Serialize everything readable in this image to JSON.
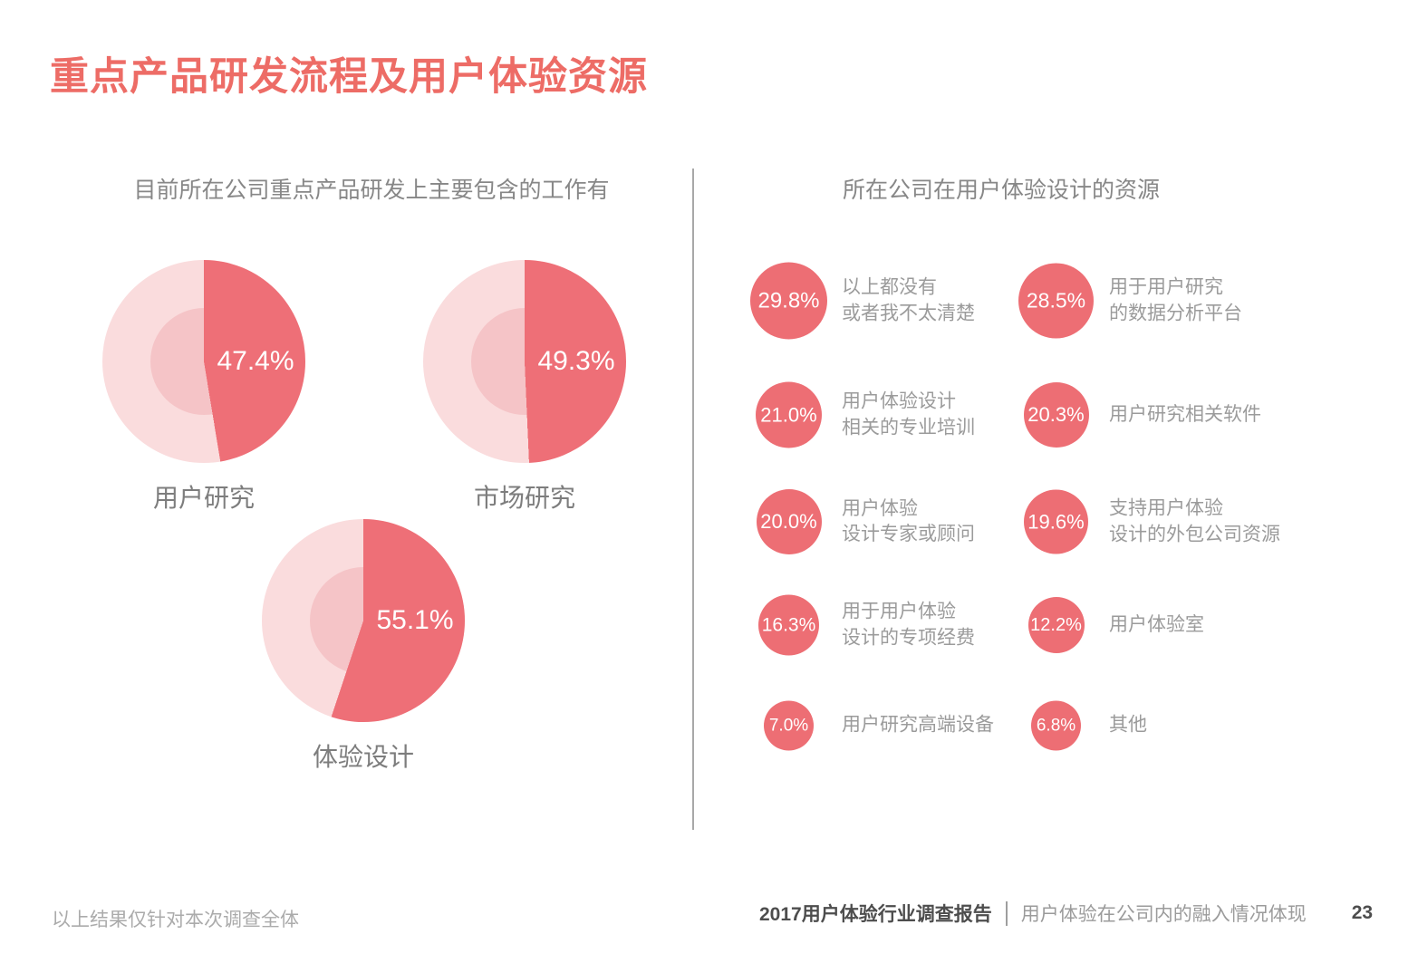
{
  "page": {
    "title": "重点产品研发流程及用户体验资源",
    "footer_note": "以上结果仅针对本次调查全体",
    "footer_report": "2017用户体验行业调查报告",
    "footer_section": "用户体验在公司内的融入情况体现",
    "footer_page": "23"
  },
  "colors": {
    "accent_title": "#ED6C66",
    "pie_slice": "#EE6F77",
    "pie_background": "#FADCDD",
    "pie_inner": "#F5C4C7",
    "bubble": "#ED6E74",
    "label_gray": "#9B9B9B"
  },
  "left": {
    "header": "目前所在公司重点产品研发上主要包含的工作有",
    "pies": [
      {
        "name": "用户研究",
        "value": 47.4,
        "value_label": "47.4%"
      },
      {
        "name": "市场研究",
        "value": 49.3,
        "value_label": "49.3%"
      },
      {
        "name": "体验设计",
        "value": 55.1,
        "value_label": "55.1%"
      }
    ]
  },
  "right": {
    "header": "所在公司在用户体验设计的资源",
    "items": [
      {
        "pct": 29.8,
        "pct_label": "29.8%",
        "label1": "以上都没有",
        "label2": "或者我不太清楚"
      },
      {
        "pct": 28.5,
        "pct_label": "28.5%",
        "label1": "用于用户研究",
        "label2": "的数据分析平台"
      },
      {
        "pct": 21.0,
        "pct_label": "21.0%",
        "label1": "用户体验设计",
        "label2": "相关的专业培训"
      },
      {
        "pct": 20.3,
        "pct_label": "20.3%",
        "label1": "用户研究相关软件",
        "label2": ""
      },
      {
        "pct": 20.0,
        "pct_label": "20.0%",
        "label1": "用户体验",
        "label2": "设计专家或顾问"
      },
      {
        "pct": 19.6,
        "pct_label": "19.6%",
        "label1": "支持用户体验",
        "label2": "设计的外包公司资源"
      },
      {
        "pct": 16.3,
        "pct_label": "16.3%",
        "label1": "用于用户体验",
        "label2": "设计的专项经费"
      },
      {
        "pct": 12.2,
        "pct_label": "12.2%",
        "label1": "用户体验室",
        "label2": ""
      },
      {
        "pct": 7.0,
        "pct_label": "7.0%",
        "label1": "用户研究高端设备",
        "label2": ""
      },
      {
        "pct": 6.8,
        "pct_label": "6.8%",
        "label1": "其他",
        "label2": ""
      }
    ]
  },
  "chart_data": [
    {
      "type": "pie",
      "title": "目前所在公司重点产品研发上主要包含的工作有",
      "note": "three single-value donut charts, slice starts at 12 o'clock clockwise",
      "series": [
        {
          "name": "用户研究",
          "value": 47.4
        },
        {
          "name": "市场研究",
          "value": 49.3
        },
        {
          "name": "体验设计",
          "value": 55.1
        }
      ],
      "unit": "%"
    },
    {
      "type": "bar",
      "title": "所在公司在用户体验设计的资源",
      "note": "rendered as proportional circles, values in %",
      "categories": [
        "以上都没有或者我不太清楚",
        "用于用户研究的数据分析平台",
        "用户体验设计相关的专业培训",
        "用户研究相关软件",
        "用户体验设计专家或顾问",
        "支持用户体验设计的外包公司资源",
        "用于用户体验设计的专项经费",
        "用户体验室",
        "用户研究高端设备",
        "其他"
      ],
      "values": [
        29.8,
        28.5,
        21.0,
        20.3,
        20.0,
        19.6,
        16.3,
        12.2,
        7.0,
        6.8
      ],
      "unit": "%"
    }
  ]
}
